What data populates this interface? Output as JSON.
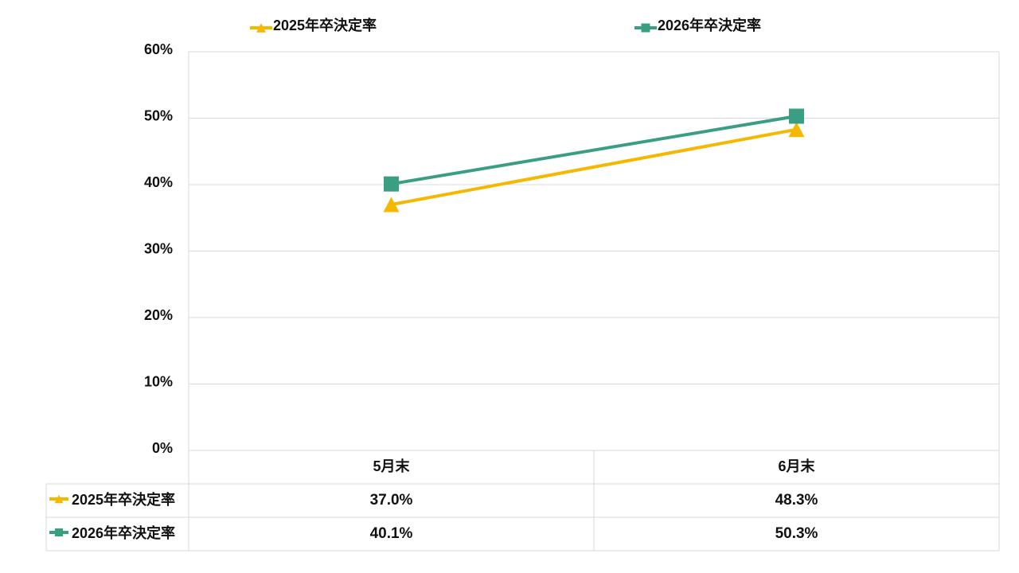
{
  "chart_data": {
    "type": "line",
    "categories": [
      "5月末",
      "6月末"
    ],
    "series": [
      {
        "name": "2025年卒決定率",
        "values": [
          37.0,
          48.3
        ],
        "color": "#f5b800",
        "marker": "triangle"
      },
      {
        "name": "2026年卒決定率",
        "values": [
          40.1,
          50.3
        ],
        "color": "#3a9e83",
        "marker": "square"
      }
    ],
    "yticks": [
      "0%",
      "10%",
      "20%",
      "30%",
      "40%",
      "50%",
      "60%"
    ],
    "ylim": [
      0,
      60
    ],
    "value_suffix": "%",
    "grid": true,
    "legend_position": "top",
    "data_table": true,
    "table_values": [
      [
        "37.0%",
        "48.3%"
      ],
      [
        "40.1%",
        "50.3%"
      ]
    ]
  }
}
